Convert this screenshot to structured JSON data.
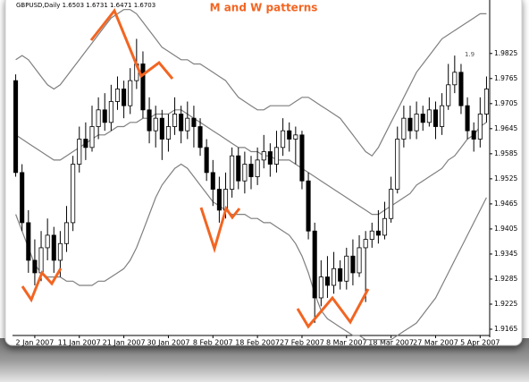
{
  "chart_data": {
    "type": "candlestick",
    "title": "M and W patterns",
    "subtitle": "GBPUSD,Daily 1.6503 1.6731 1.6471 1.6703",
    "annotation": "1.9",
    "categories": [
      null,
      null,
      null,
      "2 Jan 2007",
      null,
      null,
      null,
      null,
      null,
      null,
      "11 Jan 2007",
      null,
      null,
      null,
      null,
      null,
      null,
      "21 Jan 2007",
      null,
      null,
      null,
      null,
      null,
      null,
      "30 Jan 2007",
      null,
      null,
      null,
      null,
      null,
      null,
      "8 Feb 2007",
      null,
      null,
      null,
      null,
      null,
      null,
      "18 Feb 2007",
      null,
      null,
      null,
      null,
      null,
      null,
      "27 Feb 2007",
      null,
      null,
      null,
      null,
      null,
      null,
      "8 Mar 2007",
      null,
      null,
      null,
      null,
      null,
      null,
      "18 Mar 2007",
      null,
      null,
      null,
      null,
      null,
      null,
      "27 Mar 2007",
      null,
      null,
      null,
      null,
      null,
      null,
      "5 Apr 2007",
      null
    ],
    "open": [
      1.976,
      1.954,
      1.942,
      1.933,
      1.93,
      1.936,
      1.939,
      1.933,
      1.937,
      1.942,
      1.956,
      1.962,
      1.96,
      1.965,
      1.969,
      1.966,
      1.971,
      1.974,
      1.97,
      1.976,
      1.98,
      1.969,
      1.964,
      1.967,
      1.962,
      1.965,
      1.968,
      1.964,
      1.967,
      1.965,
      1.96,
      1.954,
      1.95,
      1.945,
      1.95,
      1.958,
      1.952,
      1.956,
      1.953,
      1.957,
      1.959,
      1.956,
      1.96,
      1.964,
      1.962,
      1.963,
      1.952,
      1.94,
      1.924,
      1.929,
      1.927,
      1.931,
      1.928,
      1.934,
      1.93,
      1.936,
      1.938,
      1.94,
      1.939,
      1.943,
      1.95,
      1.962,
      1.967,
      1.964,
      1.968,
      1.966,
      1.969,
      1.965,
      1.97,
      1.975,
      1.978,
      1.97,
      1.964,
      1.962,
      1.968
    ],
    "high": [
      1.9775,
      1.956,
      1.945,
      1.938,
      1.94,
      1.943,
      1.941,
      1.94,
      1.946,
      1.958,
      1.965,
      1.966,
      1.97,
      1.972,
      1.973,
      1.975,
      1.977,
      1.976,
      1.979,
      1.986,
      1.983,
      1.972,
      1.97,
      1.969,
      1.968,
      1.972,
      1.97,
      1.971,
      1.97,
      1.967,
      1.962,
      1.957,
      1.953,
      1.954,
      1.96,
      1.96,
      1.959,
      1.958,
      1.96,
      1.963,
      1.961,
      1.964,
      1.967,
      1.966,
      1.965,
      1.964,
      1.954,
      1.942,
      1.933,
      1.934,
      1.935,
      1.933,
      1.936,
      1.938,
      1.939,
      1.94,
      1.942,
      1.945,
      1.947,
      1.953,
      1.965,
      1.97,
      1.97,
      1.971,
      1.97,
      1.972,
      1.971,
      1.973,
      1.98,
      1.982,
      1.98,
      1.972,
      1.966,
      1.972,
      1.977
    ],
    "low": [
      1.953,
      1.94,
      1.93,
      1.927,
      1.928,
      1.933,
      1.93,
      1.929,
      1.935,
      1.94,
      1.954,
      1.957,
      1.959,
      1.962,
      1.964,
      1.964,
      1.969,
      1.967,
      1.968,
      1.974,
      1.967,
      1.961,
      1.96,
      1.957,
      1.959,
      1.963,
      1.961,
      1.962,
      1.96,
      1.958,
      1.952,
      1.946,
      1.942,
      1.943,
      1.948,
      1.95,
      1.949,
      1.95,
      1.951,
      1.955,
      1.953,
      1.954,
      1.958,
      1.959,
      1.956,
      1.95,
      1.938,
      1.918,
      1.922,
      1.924,
      1.925,
      1.926,
      1.926,
      1.927,
      1.929,
      1.923,
      1.936,
      1.937,
      1.938,
      1.942,
      1.949,
      1.96,
      1.962,
      1.962,
      1.964,
      1.965,
      1.962,
      1.963,
      1.969,
      1.973,
      1.968,
      1.962,
      1.959,
      1.96,
      1.966
    ],
    "close": [
      1.954,
      1.942,
      1.933,
      1.93,
      1.936,
      1.939,
      1.933,
      1.937,
      1.942,
      1.956,
      1.962,
      1.96,
      1.965,
      1.969,
      1.966,
      1.971,
      1.974,
      1.97,
      1.976,
      1.98,
      1.969,
      1.964,
      1.967,
      1.962,
      1.965,
      1.968,
      1.964,
      1.967,
      1.965,
      1.96,
      1.954,
      1.95,
      1.945,
      1.95,
      1.958,
      1.952,
      1.956,
      1.953,
      1.957,
      1.959,
      1.956,
      1.96,
      1.964,
      1.962,
      1.963,
      1.952,
      1.94,
      1.924,
      1.929,
      1.927,
      1.931,
      1.928,
      1.934,
      1.93,
      1.936,
      1.938,
      1.94,
      1.939,
      1.943,
      1.95,
      1.962,
      1.967,
      1.964,
      1.968,
      1.966,
      1.969,
      1.965,
      1.97,
      1.975,
      1.978,
      1.97,
      1.964,
      1.962,
      1.968,
      1.974
    ],
    "bands": {
      "upper": [
        1.981,
        1.982,
        1.981,
        1.979,
        1.977,
        1.975,
        1.974,
        1.975,
        1.977,
        1.979,
        1.981,
        1.983,
        1.985,
        1.987,
        1.989,
        1.991,
        1.992,
        1.993,
        1.993,
        1.992,
        1.99,
        1.988,
        1.986,
        1.984,
        1.983,
        1.982,
        1.981,
        1.981,
        1.98,
        1.98,
        1.979,
        1.978,
        1.977,
        1.976,
        1.974,
        1.972,
        1.971,
        1.97,
        1.969,
        1.969,
        1.97,
        1.97,
        1.97,
        1.97,
        1.971,
        1.972,
        1.972,
        1.971,
        1.97,
        1.969,
        1.968,
        1.967,
        1.965,
        1.963,
        1.961,
        1.959,
        1.958,
        1.96,
        1.963,
        1.966,
        1.969,
        1.972,
        1.975,
        1.978,
        1.98,
        1.982,
        1.984,
        1.986,
        1.987,
        1.988,
        1.989,
        1.99,
        1.991,
        1.992,
        1.992
      ],
      "middle": [
        1.963,
        1.962,
        1.961,
        1.96,
        1.959,
        1.958,
        1.957,
        1.957,
        1.958,
        1.959,
        1.96,
        1.961,
        1.962,
        1.963,
        1.963,
        1.964,
        1.965,
        1.965,
        1.966,
        1.966,
        1.967,
        1.967,
        1.968,
        1.968,
        1.968,
        1.969,
        1.969,
        1.968,
        1.967,
        1.966,
        1.965,
        1.964,
        1.963,
        1.962,
        1.961,
        1.96,
        1.96,
        1.959,
        1.959,
        1.958,
        1.958,
        1.957,
        1.957,
        1.957,
        1.956,
        1.955,
        1.954,
        1.953,
        1.952,
        1.951,
        1.95,
        1.949,
        1.948,
        1.947,
        1.946,
        1.945,
        1.944,
        1.944,
        1.945,
        1.946,
        1.947,
        1.948,
        1.949,
        1.951,
        1.952,
        1.953,
        1.954,
        1.955,
        1.957,
        1.958,
        1.96,
        1.962,
        1.963,
        1.965,
        1.966
      ],
      "lower": [
        1.944,
        1.94,
        1.936,
        1.932,
        1.93,
        1.929,
        1.929,
        1.929,
        1.928,
        1.928,
        1.927,
        1.927,
        1.927,
        1.928,
        1.928,
        1.929,
        1.93,
        1.931,
        1.933,
        1.936,
        1.94,
        1.944,
        1.948,
        1.951,
        1.953,
        1.955,
        1.956,
        1.955,
        1.953,
        1.951,
        1.949,
        1.947,
        1.946,
        1.945,
        1.944,
        1.944,
        1.944,
        1.943,
        1.943,
        1.942,
        1.942,
        1.941,
        1.94,
        1.939,
        1.937,
        1.934,
        1.93,
        1.925,
        1.921,
        1.919,
        1.918,
        1.917,
        1.916,
        1.915,
        1.915,
        1.914,
        1.914,
        1.914,
        1.914,
        1.914,
        1.915,
        1.916,
        1.917,
        1.918,
        1.92,
        1.922,
        1.924,
        1.927,
        1.93,
        1.933,
        1.936,
        1.939,
        1.942,
        1.945,
        1.948
      ]
    },
    "ylim": [
      1.915,
      1.9953
    ],
    "yticks": [
      1.9165,
      1.9225,
      1.9285,
      1.9345,
      1.9405,
      1.9465,
      1.9525,
      1.9585,
      1.9645,
      1.9705,
      1.9765,
      1.9825
    ],
    "up_color": "#ffffff",
    "down_color": "#000000",
    "band_color": "#7f7f7f",
    "title_color": "#f26522",
    "grid": false
  }
}
